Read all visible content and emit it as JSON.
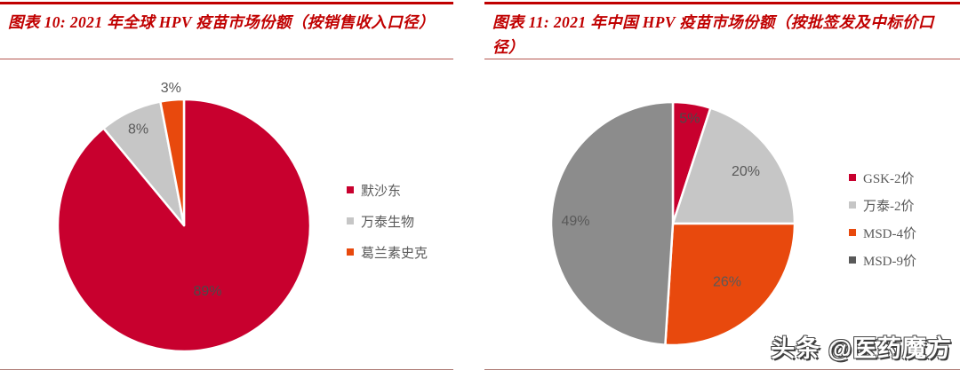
{
  "theme": {
    "accent_red": "#c00000",
    "title_rule_color": "#b5564f",
    "bottom_rule_color": "#b07e77",
    "label_gray": "#595959"
  },
  "watermark": {
    "text": "头条 @医药魔方"
  },
  "chart_data": [
    {
      "type": "pie",
      "title": "图表 10: 2021 年全球 HPV 疫苗市场份额（按销售收入口径）",
      "labels": [
        "默沙东",
        "万泰生物",
        "葛兰素史克"
      ],
      "values": [
        89,
        8,
        3
      ],
      "data_labels": [
        "89%",
        "8%",
        "3%"
      ],
      "colors": [
        "#c8002e",
        "#c6c6c6",
        "#e8490d"
      ],
      "swatch_colors": [
        "#c8002e",
        "#c6c6c6",
        "#e8490d"
      ],
      "start_angle_deg": 0,
      "direction": "clockwise",
      "legend_position": "right"
    },
    {
      "type": "pie",
      "title": "图表 11: 2021 年中国 HPV 疫苗市场份额（按批签发及中标价口径）",
      "labels": [
        "GSK-2价",
        "万泰-2价",
        "MSD-4价",
        "MSD-9价"
      ],
      "values": [
        5,
        20,
        26,
        49
      ],
      "data_labels": [
        "5%",
        "20%",
        "26%",
        "49%"
      ],
      "colors": [
        "#c8002e",
        "#c6c6c6",
        "#e8490d",
        "#8c8c8c"
      ],
      "swatch_colors": [
        "#c8002e",
        "#c6c6c6",
        "#e8490d",
        "#595959"
      ],
      "start_angle_deg": 0,
      "direction": "clockwise",
      "legend_position": "right"
    }
  ]
}
